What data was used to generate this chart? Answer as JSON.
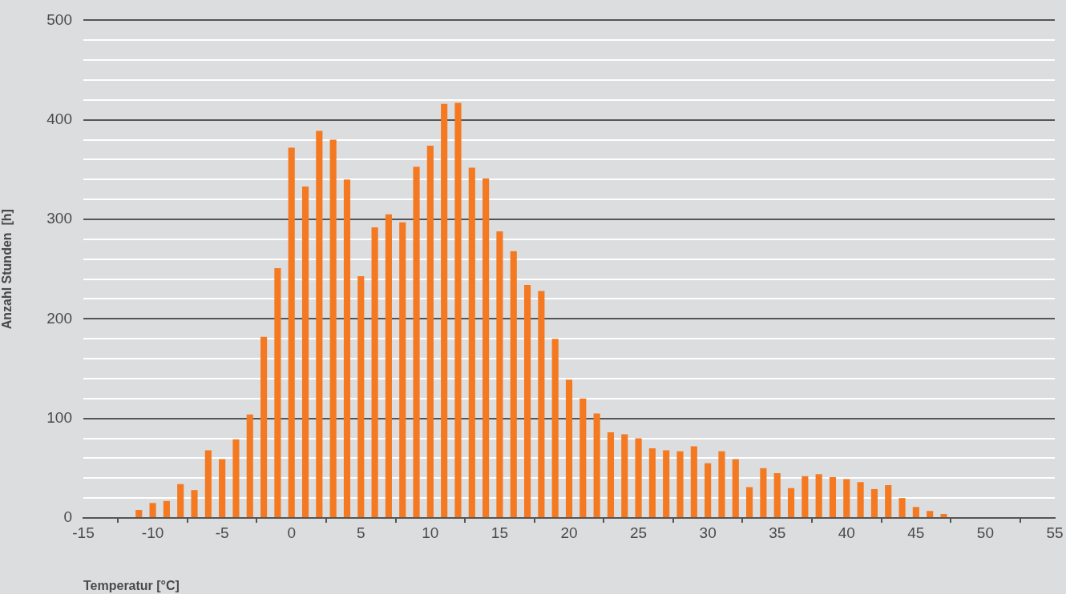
{
  "chart_data": {
    "type": "bar",
    "xlabel": "Temperatur [°C]",
    "ylabel": "Anzahl Stunden  [h]",
    "x": [
      -11,
      -10,
      -9,
      -8,
      -7,
      -6,
      -5,
      -4,
      -3,
      -2,
      -1,
      0,
      1,
      2,
      3,
      4,
      5,
      6,
      7,
      8,
      9,
      10,
      11,
      12,
      13,
      14,
      15,
      16,
      17,
      18,
      19,
      20,
      21,
      22,
      23,
      24,
      25,
      26,
      27,
      28,
      29,
      30,
      31,
      32,
      33,
      34,
      35,
      36,
      37,
      38,
      39,
      40,
      41,
      42,
      43,
      44,
      45,
      46,
      47
    ],
    "values": [
      8,
      15,
      17,
      34,
      28,
      68,
      59,
      79,
      104,
      182,
      251,
      372,
      333,
      389,
      380,
      340,
      243,
      292,
      305,
      297,
      353,
      374,
      416,
      417,
      352,
      341,
      288,
      268,
      234,
      228,
      180,
      139,
      120,
      105,
      86,
      84,
      80,
      70,
      68,
      67,
      72,
      55,
      67,
      59,
      31,
      50,
      45,
      30,
      42,
      44,
      41,
      39,
      36,
      29,
      33,
      20,
      11,
      7,
      4
    ],
    "color": "#f47920",
    "xlim": [
      -15,
      55
    ],
    "xticks": [
      -15,
      -10,
      -5,
      0,
      5,
      10,
      15,
      20,
      25,
      30,
      35,
      40,
      45,
      50,
      55
    ],
    "ylim": [
      0,
      500
    ],
    "yticks": [
      0,
      {
        "value": 20,
        "label": null
      },
      {
        "value": 40,
        "label": null
      },
      {
        "value": 60,
        "label": null
      },
      {
        "value": 80,
        "label": null
      },
      100,
      {
        "value": 120,
        "label": null
      },
      {
        "value": 140,
        "label": null
      },
      {
        "value": 160,
        "label": null
      },
      {
        "value": 180,
        "label": null
      },
      200,
      {
        "value": 220,
        "label": null
      },
      {
        "value": 240,
        "label": null
      },
      {
        "value": 260,
        "label": null
      },
      {
        "value": 280,
        "label": null
      },
      300,
      {
        "value": 320,
        "label": null
      },
      {
        "value": 340,
        "label": null
      },
      {
        "value": 360,
        "label": null
      },
      {
        "value": 380,
        "label": null
      },
      400,
      {
        "value": 420,
        "label": null
      },
      {
        "value": 440,
        "label": null
      },
      {
        "value": 460,
        "label": null
      },
      {
        "value": 480,
        "label": null
      },
      500
    ],
    "grid": "y",
    "legend": false
  }
}
